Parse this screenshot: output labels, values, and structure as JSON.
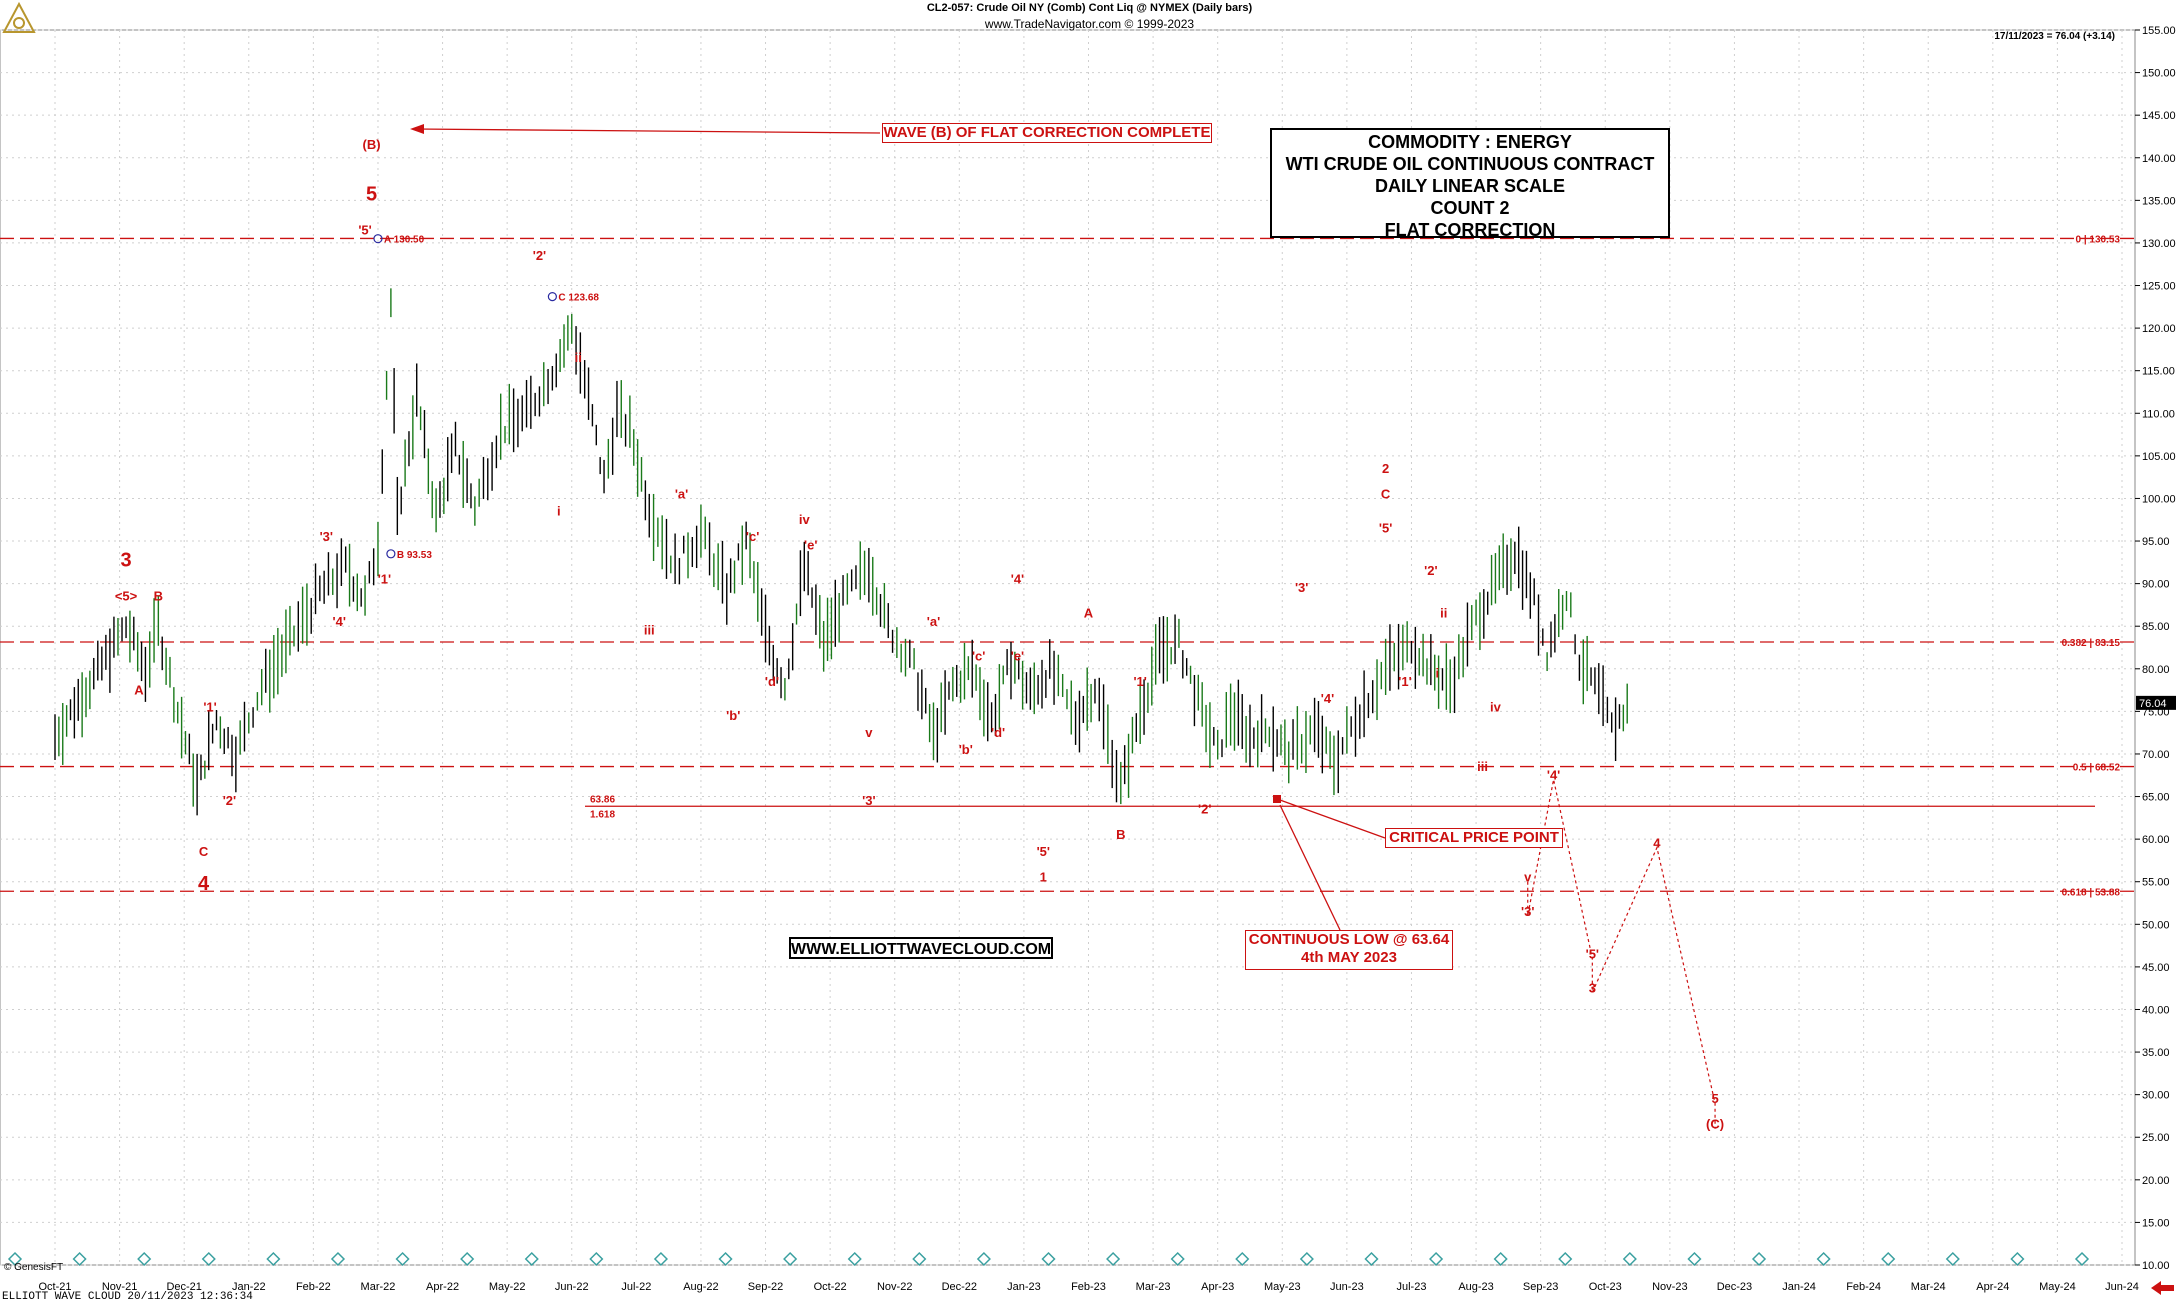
{
  "header": {
    "title": "CL2-057:  Crude Oil NY (Comb) Cont Liq @ NYMEX  (Daily bars)",
    "subtitle": "www.TradeNavigator.com © 1999-2023",
    "last_quote": "17/11/2023 = 76.04 (+3.14)"
  },
  "info_box": {
    "lines": [
      "COMMODITY : ENERGY",
      "WTI CRUDE OIL CONTINUOUS CONTRACT",
      "DAILY LINEAR SCALE",
      "COUNT 2",
      "FLAT CORRECTION"
    ]
  },
  "website": "WWW.ELLIOTTWAVECLOUD.COM",
  "callouts": {
    "wave_b": "WAVE (B) OF FLAT CORRECTION COMPLETE",
    "critical": "CRITICAL PRICE POINT",
    "low_line1": "CONTINUOUS LOW @ 63.64",
    "low_line2": "4th MAY 2023"
  },
  "footer": {
    "left": "ELLIOTT WAVE CLOUD   20/11/2023 12:36:34",
    "logo": "© GenesisFT"
  },
  "icons": [
    "genesis-logo-icon",
    "scroll-left-arrow-icon",
    "diamond-event-icon"
  ],
  "colors": {
    "wave_label": "#cc1111",
    "bars_up": "#1a7a1a",
    "bars_down": "#000000",
    "fib_line": "#cc1111",
    "background": "#ffffff"
  },
  "chart_data": {
    "type": "line",
    "price_axis": {
      "min": 10,
      "max": 155,
      "ticks": [
        "10.00",
        "15.00",
        "20.00",
        "25.00",
        "30.00",
        "35.00",
        "40.00",
        "45.00",
        "50.00",
        "55.00",
        "60.00",
        "65.00",
        "70.00",
        "75.00",
        "80.00",
        "85.00",
        "90.00",
        "95.00",
        "100.00",
        "105.00",
        "110.00",
        "115.00",
        "120.00",
        "125.00",
        "130.00",
        "135.00",
        "140.00",
        "145.00",
        "150.00",
        "155.00"
      ],
      "current_price_label": "76.04"
    },
    "date_axis": {
      "labels": [
        "Oct-21",
        "Nov-21",
        "Dec-21",
        "Jan-22",
        "Feb-22",
        "Mar-22",
        "Apr-22",
        "May-22",
        "Jun-22",
        "Jul-22",
        "Aug-22",
        "Sep-22",
        "Oct-22",
        "Nov-22",
        "Dec-22",
        "Jan-23",
        "Feb-23",
        "Mar-23",
        "Apr-23",
        "May-23",
        "Jun-23",
        "Jul-23",
        "Aug-23",
        "Sep-23",
        "Oct-23",
        "Nov-23",
        "Dec-23",
        "Jan-24",
        "Feb-24",
        "Mar-24",
        "Apr-24",
        "May-24",
        "Jun-24"
      ]
    },
    "horizontal_levels": [
      {
        "value": 130.53,
        "label": "0 | 130.53"
      },
      {
        "value": 83.15,
        "label": "0.382 | 83.15"
      },
      {
        "value": 68.52,
        "label": "0.5 | 68.52"
      },
      {
        "value": 63.86,
        "label": "63.86",
        "label2": "1.618"
      },
      {
        "value": 53.88,
        "label": "0.618 | 53.88"
      }
    ],
    "price_path": [
      {
        "x": 0,
        "y": 72
      },
      {
        "x": 0.6,
        "y": 79
      },
      {
        "x": 1.1,
        "y": 85
      },
      {
        "x": 1.4,
        "y": 80
      },
      {
        "x": 1.6,
        "y": 85
      },
      {
        "x": 1.9,
        "y": 75
      },
      {
        "x": 2.2,
        "y": 66
      },
      {
        "x": 2.5,
        "y": 74
      },
      {
        "x": 2.8,
        "y": 70
      },
      {
        "x": 3.2,
        "y": 78
      },
      {
        "x": 3.7,
        "y": 84
      },
      {
        "x": 4.1,
        "y": 89
      },
      {
        "x": 4.5,
        "y": 92
      },
      {
        "x": 4.8,
        "y": 88
      },
      {
        "x": 5.0,
        "y": 95
      },
      {
        "x": 5.2,
        "y": 123
      },
      {
        "x": 5.3,
        "y": 98
      },
      {
        "x": 5.6,
        "y": 112
      },
      {
        "x": 5.9,
        "y": 98
      },
      {
        "x": 6.2,
        "y": 106
      },
      {
        "x": 6.5,
        "y": 99
      },
      {
        "x": 6.9,
        "y": 108
      },
      {
        "x": 7.3,
        "y": 110
      },
      {
        "x": 7.7,
        "y": 115
      },
      {
        "x": 8.0,
        "y": 120
      },
      {
        "x": 8.2,
        "y": 114
      },
      {
        "x": 8.5,
        "y": 102
      },
      {
        "x": 8.7,
        "y": 110
      },
      {
        "x": 8.9,
        "y": 108
      },
      {
        "x": 9.2,
        "y": 99
      },
      {
        "x": 9.6,
        "y": 92
      },
      {
        "x": 10.0,
        "y": 96
      },
      {
        "x": 10.4,
        "y": 89
      },
      {
        "x": 10.7,
        "y": 95
      },
      {
        "x": 11.0,
        "y": 84
      },
      {
        "x": 11.3,
        "y": 78
      },
      {
        "x": 11.6,
        "y": 92
      },
      {
        "x": 11.9,
        "y": 83
      },
      {
        "x": 12.2,
        "y": 88
      },
      {
        "x": 12.6,
        "y": 92
      },
      {
        "x": 12.9,
        "y": 85
      },
      {
        "x": 13.3,
        "y": 80
      },
      {
        "x": 13.6,
        "y": 72
      },
      {
        "x": 13.9,
        "y": 78
      },
      {
        "x": 14.2,
        "y": 80
      },
      {
        "x": 14.5,
        "y": 74
      },
      {
        "x": 14.8,
        "y": 81
      },
      {
        "x": 15.1,
        "y": 77
      },
      {
        "x": 15.4,
        "y": 80
      },
      {
        "x": 15.8,
        "y": 74
      },
      {
        "x": 16.1,
        "y": 78
      },
      {
        "x": 16.5,
        "y": 66
      },
      {
        "x": 16.8,
        "y": 75
      },
      {
        "x": 17.1,
        "y": 82
      },
      {
        "x": 17.4,
        "y": 83
      },
      {
        "x": 17.7,
        "y": 76
      },
      {
        "x": 18.0,
        "y": 70
      },
      {
        "x": 18.2,
        "y": 75
      },
      {
        "x": 18.5,
        "y": 72
      },
      {
        "x": 18.8,
        "y": 73
      },
      {
        "x": 19.1,
        "y": 70
      },
      {
        "x": 19.5,
        "y": 73
      },
      {
        "x": 19.8,
        "y": 69
      },
      {
        "x": 20.2,
        "y": 75
      },
      {
        "x": 20.6,
        "y": 80
      },
      {
        "x": 21.0,
        "y": 83
      },
      {
        "x": 21.3,
        "y": 80
      },
      {
        "x": 21.6,
        "y": 78
      },
      {
        "x": 22.0,
        "y": 86
      },
      {
        "x": 22.3,
        "y": 90
      },
      {
        "x": 22.6,
        "y": 94
      },
      {
        "x": 22.9,
        "y": 88
      },
      {
        "x": 23.1,
        "y": 82
      },
      {
        "x": 23.4,
        "y": 89
      },
      {
        "x": 23.6,
        "y": 81
      },
      {
        "x": 23.9,
        "y": 77
      },
      {
        "x": 24.1,
        "y": 73
      },
      {
        "x": 24.4,
        "y": 76
      }
    ],
    "wave_labels": [
      {
        "text": "3",
        "x": 1.1,
        "y": 92,
        "big": true
      },
      {
        "text": "<5>",
        "x": 1.1,
        "y": 88
      },
      {
        "text": "B",
        "x": 1.6,
        "y": 88
      },
      {
        "text": "A",
        "x": 1.3,
        "y": 77
      },
      {
        "text": "'1'",
        "x": 2.4,
        "y": 75
      },
      {
        "text": "'2'",
        "x": 2.7,
        "y": 64
      },
      {
        "text": "C",
        "x": 2.3,
        "y": 58
      },
      {
        "text": "4",
        "x": 2.3,
        "y": 54,
        "big": true
      },
      {
        "text": "'3'",
        "x": 4.2,
        "y": 95
      },
      {
        "text": "'4'",
        "x": 4.4,
        "y": 85
      },
      {
        "text": "(B)",
        "x": 4.9,
        "y": 141
      },
      {
        "text": "5",
        "x": 4.9,
        "y": 135,
        "big": true
      },
      {
        "text": "'5'",
        "x": 4.8,
        "y": 131
      },
      {
        "text": "'1'",
        "x": 5.1,
        "y": 90
      },
      {
        "text": "'2'",
        "x": 7.5,
        "y": 128
      },
      {
        "text": "ii",
        "x": 8.1,
        "y": 116
      },
      {
        "text": "i",
        "x": 7.8,
        "y": 98
      },
      {
        "text": "iii",
        "x": 9.2,
        "y": 84
      },
      {
        "text": "'a'",
        "x": 9.7,
        "y": 100
      },
      {
        "text": "'b'",
        "x": 10.5,
        "y": 74
      },
      {
        "text": "'c'",
        "x": 10.8,
        "y": 95
      },
      {
        "text": "'d'",
        "x": 11.1,
        "y": 78
      },
      {
        "text": "'e'",
        "x": 11.7,
        "y": 94
      },
      {
        "text": "iv",
        "x": 11.6,
        "y": 97
      },
      {
        "text": "v",
        "x": 12.6,
        "y": 72
      },
      {
        "text": "'3'",
        "x": 12.6,
        "y": 64
      },
      {
        "text": "'a'",
        "x": 13.6,
        "y": 85
      },
      {
        "text": "'b'",
        "x": 14.1,
        "y": 70
      },
      {
        "text": "'c'",
        "x": 14.3,
        "y": 81
      },
      {
        "text": "'d'",
        "x": 14.6,
        "y": 72
      },
      {
        "text": "'e'",
        "x": 14.9,
        "y": 81
      },
      {
        "text": "'4'",
        "x": 14.9,
        "y": 90
      },
      {
        "text": "'5'",
        "x": 15.3,
        "y": 58
      },
      {
        "text": "1",
        "x": 15.3,
        "y": 55
      },
      {
        "text": "A",
        "x": 16.0,
        "y": 86
      },
      {
        "text": "B",
        "x": 16.5,
        "y": 60
      },
      {
        "text": "'1'",
        "x": 16.8,
        "y": 78
      },
      {
        "text": "'2'",
        "x": 17.8,
        "y": 63
      },
      {
        "text": "'3'",
        "x": 19.3,
        "y": 89
      },
      {
        "text": "'4'",
        "x": 19.7,
        "y": 76
      },
      {
        "text": "2",
        "x": 20.6,
        "y": 103
      },
      {
        "text": "C",
        "x": 20.6,
        "y": 100
      },
      {
        "text": "'5'",
        "x": 20.6,
        "y": 96
      },
      {
        "text": "'2'",
        "x": 21.3,
        "y": 91
      },
      {
        "text": "ii",
        "x": 21.5,
        "y": 86
      },
      {
        "text": "'1'",
        "x": 20.9,
        "y": 78
      },
      {
        "text": "i",
        "x": 21.4,
        "y": 79
      },
      {
        "text": "iii",
        "x": 22.1,
        "y": 68
      },
      {
        "text": "iv",
        "x": 22.3,
        "y": 75
      },
      {
        "text": "v",
        "x": 22.8,
        "y": 55
      },
      {
        "text": "'3'",
        "x": 22.8,
        "y": 51
      },
      {
        "text": "'4'",
        "x": 23.2,
        "y": 67
      },
      {
        "text": "'5'",
        "x": 23.8,
        "y": 46
      },
      {
        "text": "3",
        "x": 23.8,
        "y": 42
      },
      {
        "text": "4",
        "x": 24.8,
        "y": 59
      },
      {
        "text": "5",
        "x": 25.7,
        "y": 29
      },
      {
        "text": "(C)",
        "x": 25.7,
        "y": 26
      }
    ],
    "point_annotations": [
      {
        "text": "A 130.50",
        "x": 5.0,
        "y": 130.5
      },
      {
        "text": "B 93.53",
        "x": 5.2,
        "y": 93.5
      },
      {
        "text": "C 123.68",
        "x": 7.7,
        "y": 123.7
      }
    ],
    "title": "CL2-057:  Crude Oil NY (Comb) Cont Liq @ NYMEX  (Daily bars)",
    "grid": true,
    "legend": "none"
  }
}
